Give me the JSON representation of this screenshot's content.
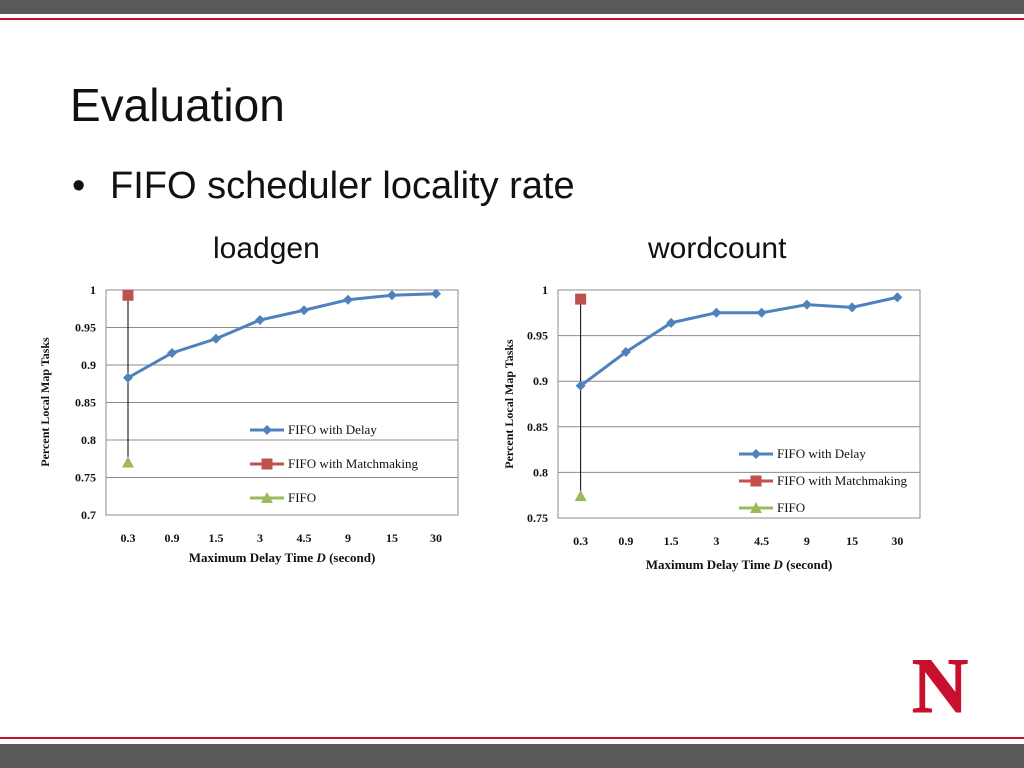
{
  "slide": {
    "title": "Evaluation",
    "bullet": "FIFO scheduler locality rate",
    "bullet_glyph": "•",
    "chart_labels": [
      "loadgen",
      "wordcount"
    ]
  },
  "colors": {
    "accent_red": "#c8102e",
    "bar_gray": "#58595b",
    "delay_line": "#4f81bd",
    "matchmaking_marker": "#c0504d",
    "fifo_marker": "#9bbb59"
  },
  "logo": {
    "icon": "nebraska-n-logo-icon",
    "text": "N"
  },
  "chart_data": [
    {
      "type": "line",
      "name": "loadgen",
      "categories": [
        "0.3",
        "0.9",
        "1.5",
        "3",
        "4.5",
        "9",
        "15",
        "30"
      ],
      "series": [
        {
          "name": "FIFO with Delay",
          "marker": "diamond",
          "values": [
            0.883,
            0.916,
            0.935,
            0.96,
            0.973,
            0.987,
            0.993,
            0.995
          ]
        },
        {
          "name": "FIFO with Matchmaking",
          "marker": "square",
          "values": [
            0.993,
            null,
            null,
            null,
            null,
            null,
            null,
            null
          ]
        },
        {
          "name": "FIFO",
          "marker": "triangle",
          "values": [
            0.77,
            null,
            null,
            null,
            null,
            null,
            null,
            null
          ]
        }
      ],
      "yticks": [
        "1",
        "0.95",
        "0.9",
        "0.85",
        "0.8",
        "0.75",
        "0.7"
      ],
      "ylim": [
        0.7,
        1
      ],
      "ylabel": "Percent Local Map Tasks",
      "xlabel_prefix": "Maximum Delay Time ",
      "xlabel_var": "D",
      "xlabel_suffix": " (second)",
      "grid": true,
      "legend": "bottom-right"
    },
    {
      "type": "line",
      "name": "wordcount",
      "categories": [
        "0.3",
        "0.9",
        "1.5",
        "3",
        "4.5",
        "9",
        "15",
        "30"
      ],
      "series": [
        {
          "name": "FIFO with Delay",
          "marker": "diamond",
          "values": [
            0.895,
            0.932,
            0.964,
            0.975,
            0.975,
            0.984,
            0.981,
            0.992
          ]
        },
        {
          "name": "FIFO with Matchmaking",
          "marker": "square",
          "values": [
            0.99,
            null,
            null,
            null,
            null,
            null,
            null,
            null
          ]
        },
        {
          "name": "FIFO",
          "marker": "triangle",
          "values": [
            0.774,
            null,
            null,
            null,
            null,
            null,
            null,
            null
          ]
        }
      ],
      "yticks": [
        "1",
        "0.95",
        "0.9",
        "0.85",
        "0.8",
        "0.75"
      ],
      "ylim": [
        0.75,
        1
      ],
      "ylabel": "Percent Local Map Tasks",
      "xlabel_prefix": "Maximum Delay Time ",
      "xlabel_var": "D",
      "xlabel_suffix": " (second)",
      "grid": true,
      "legend": "bottom-right"
    }
  ]
}
